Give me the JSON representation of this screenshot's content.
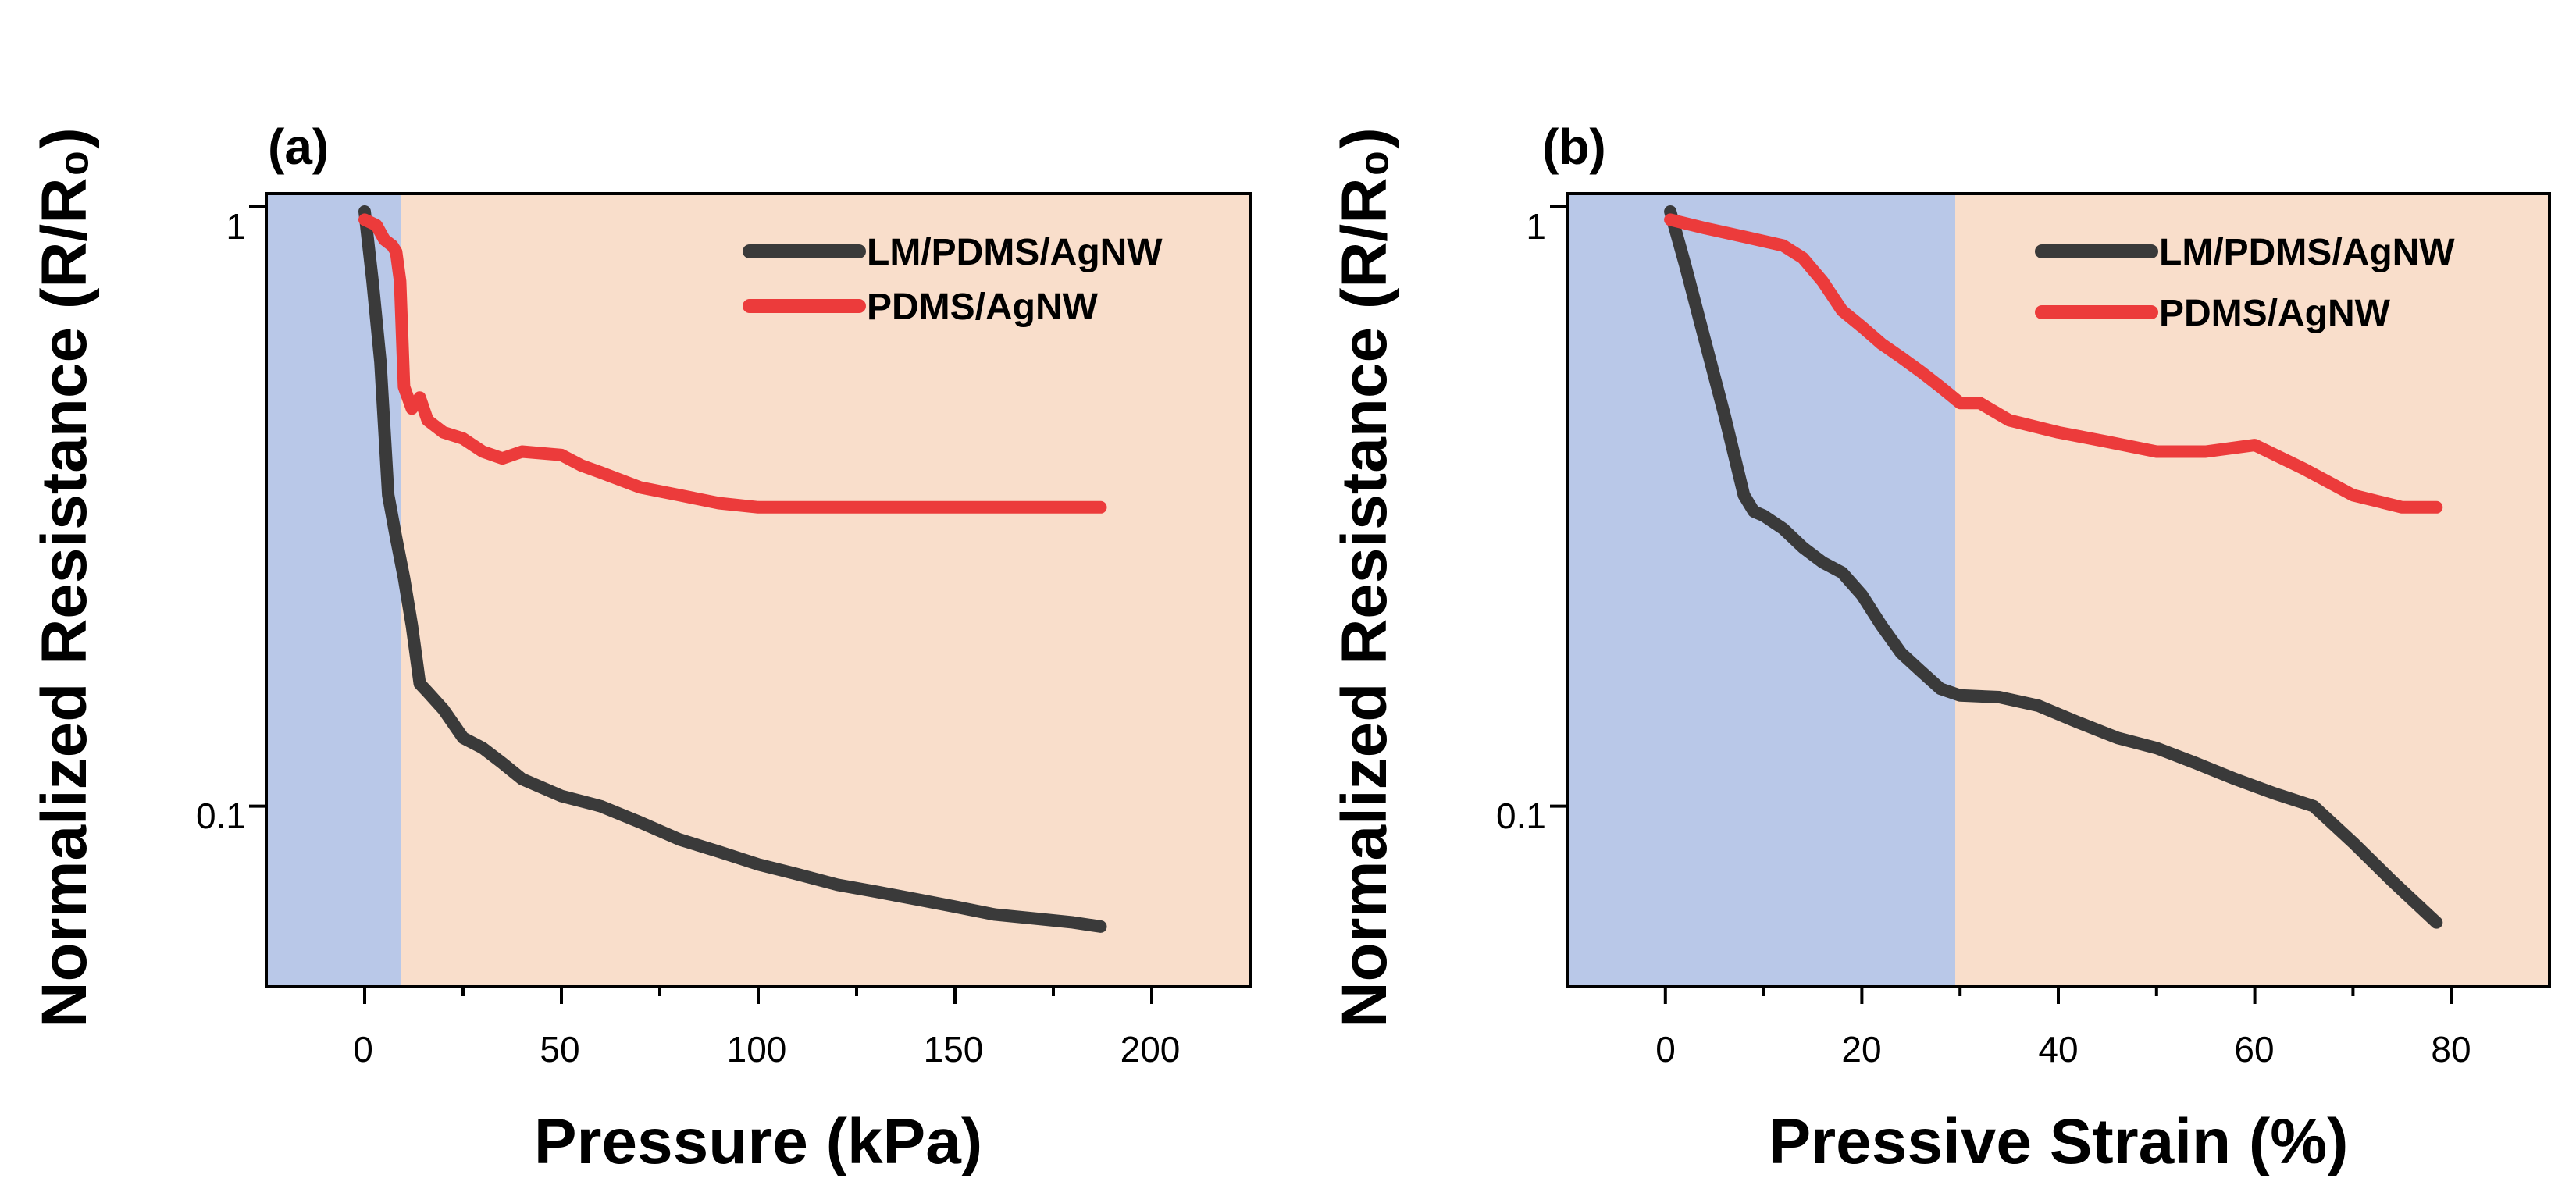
{
  "colors": {
    "series_lm": "#3a3a3a",
    "series_pdms": "#ec3b3b",
    "region_blue": "#b9c8e8",
    "region_orange": "#f9decb"
  },
  "chart_data": [
    {
      "type": "line",
      "panel_label": "(a)",
      "xlabel": "Pressure (kPa)",
      "ylabel": "Normalized Resistance (R/R₀)",
      "xscale": "linear",
      "yscale": "log",
      "xlim": [
        -25,
        225
      ],
      "ylim": [
        0.05,
        1.05
      ],
      "xticks": [
        0,
        50,
        100,
        150,
        200
      ],
      "xtick_labels": [
        "0",
        "50",
        "100",
        "150",
        "200"
      ],
      "yticks": [
        0.1,
        1
      ],
      "ytick_labels": [
        "0.1",
        "1"
      ],
      "regions": [
        {
          "name": "blue",
          "x_from": -25,
          "x_to": 10
        },
        {
          "name": "orange",
          "x_from": 10,
          "x_to": 225
        }
      ],
      "legend_position": "top-right",
      "series": [
        {
          "name": "LM/PDMS/AgNW",
          "color_key": "series_lm",
          "x": [
            0,
            2,
            4,
            6,
            8,
            10,
            12,
            14,
            16,
            20,
            25,
            30,
            35,
            40,
            50,
            60,
            70,
            80,
            90,
            100,
            110,
            120,
            130,
            140,
            150,
            160,
            170,
            180,
            187
          ],
          "y": [
            0.98,
            0.75,
            0.55,
            0.33,
            0.28,
            0.24,
            0.2,
            0.16,
            0.155,
            0.145,
            0.13,
            0.125,
            0.118,
            0.111,
            0.104,
            0.1,
            0.094,
            0.088,
            0.084,
            0.08,
            0.077,
            0.074,
            0.072,
            0.07,
            0.068,
            0.066,
            0.065,
            0.064,
            0.063
          ]
        },
        {
          "name": "PDMS/AgNW",
          "color_key": "series_pdms",
          "x": [
            0,
            3,
            5,
            7,
            8,
            9,
            10,
            12,
            14,
            16,
            20,
            25,
            30,
            35,
            40,
            50,
            55,
            60,
            70,
            80,
            90,
            100,
            110,
            120,
            140,
            160,
            187
          ],
          "y": [
            0.95,
            0.93,
            0.88,
            0.86,
            0.84,
            0.75,
            0.5,
            0.46,
            0.48,
            0.44,
            0.42,
            0.41,
            0.39,
            0.38,
            0.39,
            0.385,
            0.37,
            0.36,
            0.34,
            0.33,
            0.32,
            0.315,
            0.315,
            0.315,
            0.315,
            0.315,
            0.315
          ]
        }
      ]
    },
    {
      "type": "line",
      "panel_label": "(b)",
      "xlabel": "Pressive Strain (%)",
      "ylabel": "Normalized Resistance (R/R₀)",
      "xscale": "linear",
      "yscale": "log",
      "xlim": [
        -10,
        90
      ],
      "ylim": [
        0.05,
        1.05
      ],
      "xticks": [
        0,
        20,
        40,
        60,
        80
      ],
      "xtick_labels": [
        "0",
        "20",
        "40",
        "60",
        "80"
      ],
      "yticks": [
        0.1,
        1
      ],
      "ytick_labels": [
        "0.1",
        "1"
      ],
      "regions": [
        {
          "name": "blue",
          "x_from": -10,
          "x_to": 29.5
        },
        {
          "name": "orange",
          "x_from": 29.5,
          "x_to": 90
        }
      ],
      "legend_position": "top-right",
      "series": [
        {
          "name": "LM/PDMS/AgNW",
          "color_key": "series_lm",
          "x": [
            0.5,
            2,
            4,
            6,
            8,
            9,
            10,
            12,
            14,
            16,
            18,
            20,
            22,
            24,
            26,
            28,
            30,
            34,
            38,
            42,
            46,
            50,
            54,
            58,
            62,
            66,
            70,
            74,
            78.5
          ],
          "y": [
            0.98,
            0.8,
            0.6,
            0.45,
            0.33,
            0.31,
            0.305,
            0.29,
            0.27,
            0.255,
            0.245,
            0.225,
            0.2,
            0.18,
            0.168,
            0.157,
            0.153,
            0.152,
            0.147,
            0.138,
            0.13,
            0.125,
            0.118,
            0.111,
            0.105,
            0.1,
            0.087,
            0.075,
            0.064
          ]
        },
        {
          "name": "PDMS/AgNW",
          "color_key": "series_pdms",
          "x": [
            0.5,
            4,
            8,
            12,
            14,
            16,
            18,
            20,
            22,
            24,
            26,
            28,
            30,
            32,
            35,
            40,
            45,
            50,
            55,
            60,
            65,
            70,
            75,
            78.5
          ],
          "y": [
            0.95,
            0.92,
            0.89,
            0.86,
            0.82,
            0.75,
            0.67,
            0.63,
            0.59,
            0.56,
            0.53,
            0.5,
            0.47,
            0.47,
            0.44,
            0.42,
            0.405,
            0.39,
            0.39,
            0.4,
            0.365,
            0.33,
            0.315,
            0.315
          ]
        }
      ]
    }
  ]
}
